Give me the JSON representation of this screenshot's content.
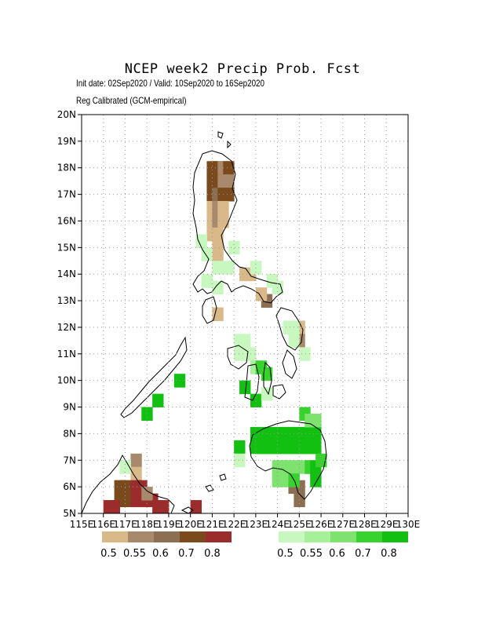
{
  "title": "NCEP week2 Precip Prob. Fcst",
  "subtitle_line1": "Init date: 02Sep2020 / Valid: 10Sep2020 to 16Sep2020",
  "subtitle_line2": "Reg Calibrated (GCM-empirical)",
  "map": {
    "lon_range": [
      115,
      130
    ],
    "lat_range": [
      5,
      20
    ],
    "grid_step": 0.5,
    "lat_ticks": [
      "20N",
      "19N",
      "18N",
      "17N",
      "16N",
      "15N",
      "14N",
      "13N",
      "12N",
      "11N",
      "10N",
      "9N",
      "8N",
      "7N",
      "6N",
      "5N"
    ],
    "lon_ticks": [
      "115E",
      "116E",
      "117E",
      "118E",
      "119E",
      "120E",
      "121E",
      "122E",
      "123E",
      "124E",
      "125E",
      "126E",
      "127E",
      "128E",
      "129E",
      "130E"
    ],
    "gridlines": "dotted",
    "colors": {
      "dry": {
        "0.5": "#d9b98a",
        "0.55": "#a8896b",
        "0.6": "#8c6e52",
        "0.7": "#7a4a1c",
        "0.8": "#9a2c2c"
      },
      "wet": {
        "0.5": "#c8f7c0",
        "0.55": "#a6f09a",
        "0.6": "#7ee36e",
        "0.7": "#37d22d",
        "0.8": "#12c012"
      }
    },
    "cells_dry": [],
    "cells_wet": []
  },
  "legend_dry": {
    "labels": [
      "0.5",
      "0.55",
      "0.6",
      "0.7",
      "0.8"
    ],
    "colors": [
      "#d9b98a",
      "#a8896b",
      "#8c6e52",
      "#7a4a1c",
      "#9a2c2c"
    ]
  },
  "legend_wet": {
    "labels": [
      "0.5",
      "0.55",
      "0.6",
      "0.7",
      "0.8"
    ],
    "colors": [
      "#c8f7c0",
      "#a6f09a",
      "#7ee36e",
      "#37d22d",
      "#12c012"
    ]
  }
}
